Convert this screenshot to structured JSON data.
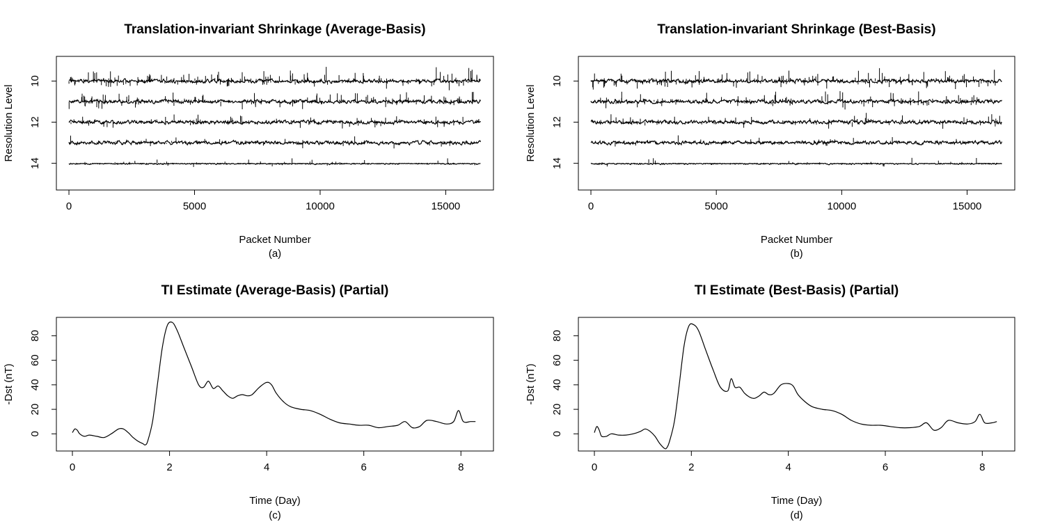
{
  "chart_data": [
    {
      "id": "a",
      "type": "line",
      "title": "Translation-invariant Shrinkage (Average-Basis)",
      "xlabel": "Packet Number",
      "ylabel": "Resolution Level",
      "panel_label": "(a)",
      "xlim": [
        -500,
        16900
      ],
      "ylim": [
        15.3,
        8.8
      ],
      "x_ticks": [
        0,
        5000,
        10000,
        15000
      ],
      "x_tick_labels": [
        "0",
        "5000",
        "10000",
        "15000"
      ],
      "y_ticks": [
        10,
        12,
        14
      ],
      "y_tick_labels": [
        "10",
        "12",
        "14"
      ],
      "series": [
        {
          "level": 10,
          "x_range": [
            0,
            16384
          ],
          "density": 150,
          "amplitude": 0.35,
          "seed": 11
        },
        {
          "level": 11,
          "x_range": [
            0,
            16384
          ],
          "density": 120,
          "amplitude": 0.3,
          "seed": 23
        },
        {
          "level": 12,
          "x_range": [
            0,
            16384
          ],
          "density": 80,
          "amplitude": 0.26,
          "seed": 37
        },
        {
          "level": 13,
          "x_range": [
            0,
            16384
          ],
          "density": 40,
          "amplitude": 0.22,
          "seed": 41
        },
        {
          "level": 14,
          "x_range": [
            0,
            16384
          ],
          "density": 30,
          "amplitude": 0.18,
          "seed": 53
        }
      ]
    },
    {
      "id": "b",
      "type": "line",
      "title": "Translation-invariant Shrinkage (Best-Basis)",
      "xlabel": "Packet Number",
      "ylabel": "Resolution Level",
      "panel_label": "(b)",
      "xlim": [
        -500,
        16900
      ],
      "ylim": [
        15.3,
        8.8
      ],
      "x_ticks": [
        0,
        5000,
        10000,
        15000
      ],
      "x_tick_labels": [
        "0",
        "5000",
        "10000",
        "15000"
      ],
      "y_ticks": [
        10,
        12,
        14
      ],
      "y_tick_labels": [
        "10",
        "12",
        "14"
      ],
      "series": [
        {
          "level": 10,
          "x_range": [
            0,
            16384
          ],
          "density": 150,
          "amplitude": 0.35,
          "seed": 17
        },
        {
          "level": 11,
          "x_range": [
            0,
            16384
          ],
          "density": 120,
          "amplitude": 0.3,
          "seed": 29
        },
        {
          "level": 12,
          "x_range": [
            0,
            16384
          ],
          "density": 80,
          "amplitude": 0.26,
          "seed": 31
        },
        {
          "level": 13,
          "x_range": [
            0,
            16384
          ],
          "density": 40,
          "amplitude": 0.22,
          "seed": 47
        },
        {
          "level": 14,
          "x_range": [
            0,
            16384
          ],
          "density": 30,
          "amplitude": 0.18,
          "seed": 59
        }
      ]
    },
    {
      "id": "c",
      "type": "line",
      "title": "TI Estimate (Average-Basis) (Partial)",
      "xlabel": "Time (Day)",
      "ylabel": "-Dst (nT)",
      "panel_label": "(c)",
      "xlim": [
        -0.33,
        8.67
      ],
      "ylim": [
        -14,
        95
      ],
      "x_ticks": [
        0,
        2,
        4,
        6,
        8
      ],
      "x_tick_labels": [
        "0",
        "2",
        "4",
        "6",
        "8"
      ],
      "y_ticks": [
        0,
        20,
        40,
        60,
        80
      ],
      "y_tick_labels": [
        "0",
        "20",
        "40",
        "60",
        "80"
      ],
      "x": [
        0.0,
        0.05,
        0.1,
        0.15,
        0.25,
        0.35,
        0.5,
        0.65,
        0.8,
        0.95,
        1.05,
        1.15,
        1.25,
        1.35,
        1.45,
        1.5,
        1.55,
        1.65,
        1.75,
        1.85,
        1.95,
        2.05,
        2.15,
        2.3,
        2.45,
        2.6,
        2.7,
        2.8,
        2.9,
        3.0,
        3.1,
        3.2,
        3.3,
        3.4,
        3.5,
        3.6,
        3.7,
        3.85,
        4.0,
        4.1,
        4.2,
        4.35,
        4.5,
        4.7,
        4.9,
        5.1,
        5.3,
        5.5,
        5.7,
        5.9,
        6.1,
        6.3,
        6.5,
        6.7,
        6.85,
        7.0,
        7.15,
        7.3,
        7.5,
        7.7,
        7.85,
        7.95,
        8.05,
        8.2,
        8.3
      ],
      "y": [
        1,
        4,
        3,
        0,
        -2,
        -1,
        -2,
        -3,
        0,
        4,
        4,
        1,
        -3,
        -6,
        -8,
        -9,
        -6,
        10,
        40,
        70,
        88,
        91,
        85,
        70,
        55,
        40,
        38,
        43,
        37,
        39,
        35,
        31,
        29,
        31,
        32,
        31,
        32,
        38,
        42,
        40,
        33,
        26,
        22,
        20,
        19,
        16,
        12,
        9,
        8,
        7,
        7,
        5,
        6,
        7,
        10,
        5,
        6,
        11,
        10,
        8,
        10,
        19,
        10,
        10,
        10
      ]
    },
    {
      "id": "d",
      "type": "line",
      "title": "TI Estimate (Best-Basis) (Partial)",
      "xlabel": "Time (Day)",
      "ylabel": "-Dst (nT)",
      "panel_label": "(d)",
      "xlim": [
        -0.33,
        8.67
      ],
      "ylim": [
        -14,
        95
      ],
      "x_ticks": [
        0,
        2,
        4,
        6,
        8
      ],
      "x_tick_labels": [
        "0",
        "2",
        "4",
        "6",
        "8"
      ],
      "y_ticks": [
        0,
        20,
        40,
        60,
        80
      ],
      "y_tick_labels": [
        "0",
        "20",
        "40",
        "60",
        "80"
      ],
      "x": [
        0.0,
        0.05,
        0.1,
        0.15,
        0.25,
        0.35,
        0.5,
        0.65,
        0.8,
        0.95,
        1.05,
        1.15,
        1.25,
        1.35,
        1.45,
        1.5,
        1.55,
        1.65,
        1.75,
        1.85,
        1.95,
        2.05,
        2.15,
        2.3,
        2.45,
        2.6,
        2.75,
        2.82,
        2.9,
        3.0,
        3.1,
        3.2,
        3.3,
        3.4,
        3.5,
        3.6,
        3.7,
        3.85,
        4.0,
        4.1,
        4.2,
        4.35,
        4.5,
        4.7,
        4.9,
        5.1,
        5.3,
        5.5,
        5.7,
        5.9,
        6.1,
        6.3,
        6.5,
        6.7,
        6.85,
        7.0,
        7.15,
        7.3,
        7.5,
        7.7,
        7.85,
        7.95,
        8.05,
        8.2,
        8.3
      ],
      "y": [
        1,
        6,
        3,
        -2,
        -2,
        0,
        -1,
        -1,
        0,
        2,
        4,
        2,
        -2,
        -8,
        -12,
        -11,
        -6,
        10,
        40,
        72,
        88,
        89,
        84,
        68,
        52,
        38,
        35,
        45,
        38,
        38,
        33,
        30,
        29,
        31,
        34,
        32,
        33,
        40,
        41,
        39,
        32,
        26,
        22,
        20,
        19,
        16,
        11,
        8,
        7,
        7,
        6,
        5,
        5,
        6,
        9,
        3,
        5,
        11,
        9,
        8,
        10,
        16,
        9,
        9,
        10
      ]
    }
  ]
}
